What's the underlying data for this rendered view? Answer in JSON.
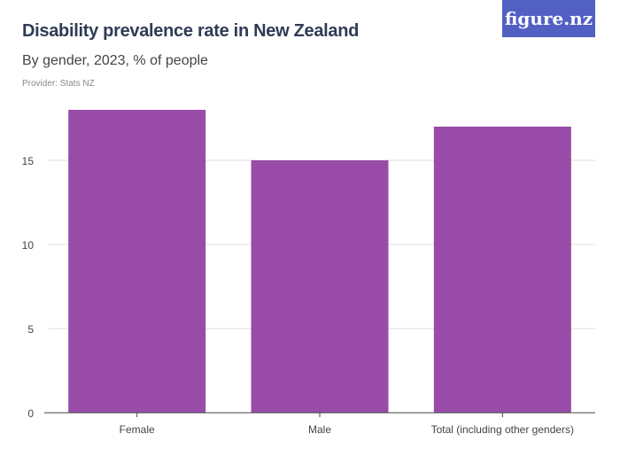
{
  "title": "Disability prevalence rate in New Zealand",
  "subtitle": "By gender, 2023, % of people",
  "provider": "Provider: Stats NZ",
  "logo": "figure.nz",
  "colors": {
    "bar": "#984ca8",
    "logo_bg": "#5260c4",
    "grid": "#dddddd"
  },
  "chart_data": {
    "type": "bar",
    "categories": [
      "Female",
      "Male",
      "Total (including other genders)"
    ],
    "values": [
      18,
      15,
      17
    ],
    "yticks": [
      0,
      5,
      10,
      15
    ],
    "ylim": [
      0,
      18.5
    ],
    "grid": true,
    "xlabel": "",
    "ylabel": ""
  }
}
